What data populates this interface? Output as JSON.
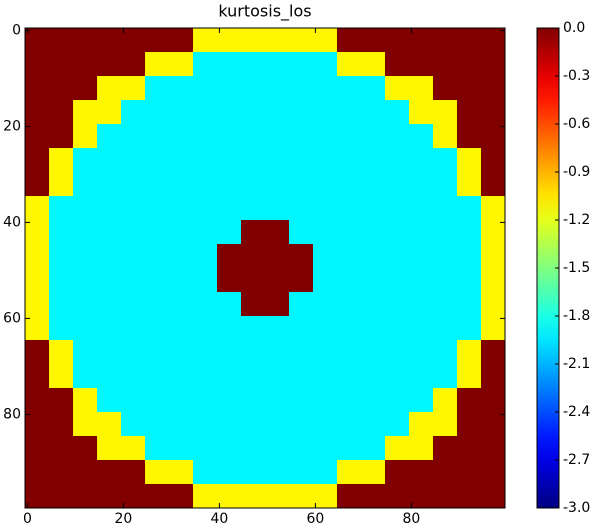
{
  "chart_data": {
    "type": "heatmap",
    "title": "kurtosis_los",
    "colormap": "jet",
    "xlim": [
      -0.5,
      99.5
    ],
    "ylim": [
      99.5,
      -0.5
    ],
    "xticks": [
      0,
      20,
      40,
      60,
      80
    ],
    "yticks": [
      0,
      20,
      40,
      60,
      80
    ],
    "clim": [
      -3,
      0
    ],
    "cticks": [
      {
        "value": 0,
        "label": "0.0"
      },
      -0.3,
      -0.6,
      -0.9,
      -1.2,
      -1.5,
      -1.8,
      -2.1,
      -2.4,
      -2.7,
      {
        "value": -3,
        "label": "-3.0"
      }
    ],
    "values": [
      [
        0,
        0,
        0,
        0,
        0,
        0,
        0,
        -1.1,
        -1.1,
        -1.1,
        -1.1,
        -1.1,
        -1.1,
        0,
        0,
        0,
        0,
        0,
        0,
        0
      ],
      [
        0,
        0,
        0,
        0,
        0,
        -1.1,
        -1.1,
        -1.9,
        -1.9,
        -1.9,
        -1.9,
        -1.9,
        -1.9,
        -1.1,
        -1.1,
        0,
        0,
        0,
        0,
        0
      ],
      [
        0,
        0,
        0,
        -1.1,
        -1.1,
        -1.9,
        -1.9,
        -1.9,
        -1.9,
        -1.9,
        -1.9,
        -1.9,
        -1.9,
        -1.9,
        -1.9,
        -1.1,
        -1.1,
        0,
        0,
        0
      ],
      [
        0,
        0,
        -1.1,
        -1.1,
        -1.9,
        -1.9,
        -1.9,
        -1.9,
        -1.9,
        -1.9,
        -1.9,
        -1.9,
        -1.9,
        -1.9,
        -1.9,
        -1.9,
        -1.1,
        -1.1,
        0,
        0
      ],
      [
        0,
        0,
        -1.1,
        -1.9,
        -1.9,
        -1.9,
        -1.9,
        -1.9,
        -1.9,
        -1.9,
        -1.9,
        -1.9,
        -1.9,
        -1.9,
        -1.9,
        -1.9,
        -1.9,
        -1.1,
        0,
        0
      ],
      [
        0,
        -1.1,
        -1.9,
        -1.9,
        -1.9,
        -1.9,
        -1.9,
        -1.9,
        -1.9,
        -1.9,
        -1.9,
        -1.9,
        -1.9,
        -1.9,
        -1.9,
        -1.9,
        -1.9,
        -1.9,
        -1.1,
        0
      ],
      [
        0,
        -1.1,
        -1.9,
        -1.9,
        -1.9,
        -1.9,
        -1.9,
        -1.9,
        -1.9,
        -1.9,
        -1.9,
        -1.9,
        -1.9,
        -1.9,
        -1.9,
        -1.9,
        -1.9,
        -1.9,
        -1.1,
        0
      ],
      [
        -1.1,
        -1.9,
        -1.9,
        -1.9,
        -1.9,
        -1.9,
        -1.9,
        -1.9,
        -1.9,
        -1.9,
        -1.9,
        -1.9,
        -1.9,
        -1.9,
        -1.9,
        -1.9,
        -1.9,
        -1.9,
        -1.9,
        -1.1
      ],
      [
        -1.1,
        -1.9,
        -1.9,
        -1.9,
        -1.9,
        -1.9,
        -1.9,
        -1.9,
        -1.9,
        0,
        0,
        -1.9,
        -1.9,
        -1.9,
        -1.9,
        -1.9,
        -1.9,
        -1.9,
        -1.9,
        -1.1
      ],
      [
        -1.1,
        -1.9,
        -1.9,
        -1.9,
        -1.9,
        -1.9,
        -1.9,
        -1.9,
        0,
        0,
        0,
        0,
        -1.9,
        -1.9,
        -1.9,
        -1.9,
        -1.9,
        -1.9,
        -1.9,
        -1.1
      ],
      [
        -1.1,
        -1.9,
        -1.9,
        -1.9,
        -1.9,
        -1.9,
        -1.9,
        -1.9,
        0,
        0,
        0,
        0,
        -1.9,
        -1.9,
        -1.9,
        -1.9,
        -1.9,
        -1.9,
        -1.9,
        -1.1
      ],
      [
        -1.1,
        -1.9,
        -1.9,
        -1.9,
        -1.9,
        -1.9,
        -1.9,
        -1.9,
        -1.9,
        0,
        0,
        -1.9,
        -1.9,
        -1.9,
        -1.9,
        -1.9,
        -1.9,
        -1.9,
        -1.9,
        -1.1
      ],
      [
        -1.1,
        -1.9,
        -1.9,
        -1.9,
        -1.9,
        -1.9,
        -1.9,
        -1.9,
        -1.9,
        -1.9,
        -1.9,
        -1.9,
        -1.9,
        -1.9,
        -1.9,
        -1.9,
        -1.9,
        -1.9,
        -1.9,
        -1.1
      ],
      [
        0,
        -1.1,
        -1.9,
        -1.9,
        -1.9,
        -1.9,
        -1.9,
        -1.9,
        -1.9,
        -1.9,
        -1.9,
        -1.9,
        -1.9,
        -1.9,
        -1.9,
        -1.9,
        -1.9,
        -1.9,
        -1.1,
        0
      ],
      [
        0,
        -1.1,
        -1.9,
        -1.9,
        -1.9,
        -1.9,
        -1.9,
        -1.9,
        -1.9,
        -1.9,
        -1.9,
        -1.9,
        -1.9,
        -1.9,
        -1.9,
        -1.9,
        -1.9,
        -1.9,
        -1.1,
        0
      ],
      [
        0,
        0,
        -1.1,
        -1.9,
        -1.9,
        -1.9,
        -1.9,
        -1.9,
        -1.9,
        -1.9,
        -1.9,
        -1.9,
        -1.9,
        -1.9,
        -1.9,
        -1.9,
        -1.9,
        -1.1,
        0,
        0
      ],
      [
        0,
        0,
        -1.1,
        -1.1,
        -1.9,
        -1.9,
        -1.9,
        -1.9,
        -1.9,
        -1.9,
        -1.9,
        -1.9,
        -1.9,
        -1.9,
        -1.9,
        -1.9,
        -1.1,
        -1.1,
        0,
        0
      ],
      [
        0,
        0,
        0,
        -1.1,
        -1.1,
        -1.9,
        -1.9,
        -1.9,
        -1.9,
        -1.9,
        -1.9,
        -1.9,
        -1.9,
        -1.9,
        -1.9,
        -1.1,
        -1.1,
        0,
        0,
        0
      ],
      [
        0,
        0,
        0,
        0,
        0,
        -1.1,
        -1.1,
        -1.9,
        -1.9,
        -1.9,
        -1.9,
        -1.9,
        -1.9,
        -1.1,
        -1.1,
        0,
        0,
        0,
        0,
        0
      ],
      [
        0,
        0,
        0,
        0,
        0,
        0,
        0,
        -1.1,
        -1.1,
        -1.1,
        -1.1,
        -1.1,
        -1.1,
        0,
        0,
        0,
        0,
        0,
        0,
        0
      ]
    ]
  }
}
